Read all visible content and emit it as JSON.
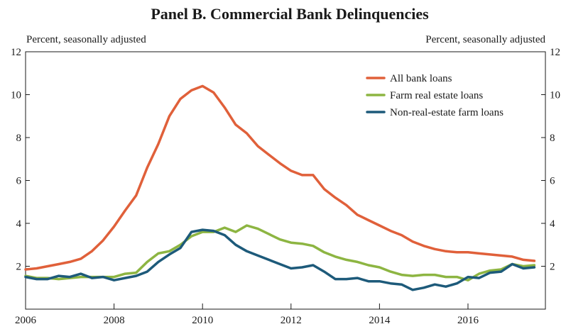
{
  "chart_data": {
    "type": "line",
    "title": "Panel B. Commercial Bank Delinquencies",
    "y_unit_left": "Percent, seasonally adjusted",
    "y_unit_right": "Percent, seasonally adjusted",
    "xlim": [
      2006,
      2017.75
    ],
    "ylim": [
      0,
      12
    ],
    "x_ticks": [
      2006,
      2008,
      2010,
      2012,
      2014,
      2016
    ],
    "x_tick_labels": [
      "2006",
      "2008",
      "2010",
      "2012",
      "2014",
      "2016"
    ],
    "y_ticks": [
      2,
      4,
      6,
      8,
      10,
      12
    ],
    "y_tick_labels": [
      "2",
      "4",
      "6",
      "8",
      "10",
      "12"
    ],
    "legend_position": "top-right",
    "grid": false,
    "x": [
      2006.0,
      2006.25,
      2006.5,
      2006.75,
      2007.0,
      2007.25,
      2007.5,
      2007.75,
      2008.0,
      2008.25,
      2008.5,
      2008.75,
      2009.0,
      2009.25,
      2009.5,
      2009.75,
      2010.0,
      2010.25,
      2010.5,
      2010.75,
      2011.0,
      2011.25,
      2011.5,
      2011.75,
      2012.0,
      2012.25,
      2012.5,
      2012.75,
      2013.0,
      2013.25,
      2013.5,
      2013.75,
      2014.0,
      2014.25,
      2014.5,
      2014.75,
      2015.0,
      2015.25,
      2015.5,
      2015.75,
      2016.0,
      2016.25,
      2016.5,
      2016.75,
      2017.0,
      2017.25,
      2017.5
    ],
    "series": [
      {
        "name": "All bank loans",
        "color": "#e0603a",
        "values": [
          1.85,
          1.9,
          2.0,
          2.1,
          2.2,
          2.35,
          2.7,
          3.2,
          3.85,
          4.6,
          5.3,
          6.6,
          7.7,
          9.0,
          9.8,
          10.2,
          10.4,
          10.1,
          9.4,
          8.6,
          8.2,
          7.6,
          7.2,
          6.8,
          6.45,
          6.25,
          6.25,
          5.6,
          5.2,
          4.85,
          4.4,
          4.15,
          3.9,
          3.65,
          3.45,
          3.15,
          2.95,
          2.8,
          2.7,
          2.65,
          2.65,
          2.6,
          2.55,
          2.5,
          2.45,
          2.3,
          2.25
        ]
      },
      {
        "name": "Farm real estate loans",
        "color": "#8db542",
        "values": [
          1.55,
          1.45,
          1.45,
          1.4,
          1.45,
          1.5,
          1.5,
          1.5,
          1.5,
          1.65,
          1.7,
          2.2,
          2.6,
          2.7,
          3.0,
          3.4,
          3.6,
          3.6,
          3.8,
          3.6,
          3.9,
          3.75,
          3.5,
          3.25,
          3.1,
          3.05,
          2.95,
          2.65,
          2.45,
          2.3,
          2.2,
          2.05,
          1.95,
          1.75,
          1.6,
          1.55,
          1.6,
          1.6,
          1.5,
          1.5,
          1.35,
          1.65,
          1.8,
          1.85,
          2.1,
          2.0,
          2.05
        ]
      },
      {
        "name": "Non-real-estate farm loans",
        "color": "#1d5a7a",
        "values": [
          1.5,
          1.4,
          1.4,
          1.55,
          1.5,
          1.65,
          1.45,
          1.5,
          1.35,
          1.45,
          1.55,
          1.75,
          2.2,
          2.55,
          2.85,
          3.6,
          3.7,
          3.65,
          3.45,
          3.0,
          2.7,
          2.5,
          2.3,
          2.1,
          1.9,
          1.95,
          2.05,
          1.75,
          1.4,
          1.4,
          1.45,
          1.3,
          1.3,
          1.2,
          1.15,
          0.9,
          1.0,
          1.15,
          1.05,
          1.2,
          1.5,
          1.45,
          1.7,
          1.75,
          2.1,
          1.9,
          1.95
        ]
      }
    ]
  }
}
